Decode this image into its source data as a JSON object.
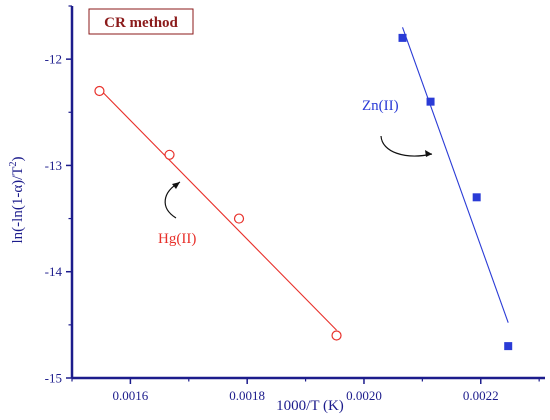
{
  "chart_data": {
    "type": "scatter",
    "title": "CR method",
    "xlabel": "1000/T (K)",
    "ylabel_main": "ln(-ln(1-α)/T",
    "ylabel_sup": "2",
    "ylabel_close": ")",
    "xlim": [
      0.0015,
      0.00231
    ],
    "ylim": [
      -15.0,
      -11.5
    ],
    "xticks": [
      0.0016,
      0.0018,
      0.002,
      0.0022
    ],
    "xtick_labels": [
      "0.0016",
      "0.0018",
      "0.0020",
      "0.0022"
    ],
    "yticks": [
      -12,
      -13,
      -14,
      -15
    ],
    "ytick_labels": [
      "-12",
      "-13",
      "-14",
      "-15"
    ],
    "axis_color": "#1c1c8c",
    "title_color": "#8b1a1a",
    "series": [
      {
        "name": "Hg(II)",
        "marker": "open-circle",
        "color": "#e8302a",
        "x": [
          0.001547,
          0.001667,
          0.001786,
          0.001953
        ],
        "y": [
          -12.3,
          -12.9,
          -13.5,
          -14.6
        ],
        "fit_x": [
          0.001547,
          0.001953
        ],
        "fit_y": [
          -12.28,
          -14.55
        ]
      },
      {
        "name": "Zn(II)",
        "marker": "filled-square",
        "color": "#2a3bd6",
        "x": [
          0.002066,
          0.002114,
          0.002193,
          0.002247
        ],
        "y": [
          -11.8,
          -12.4,
          -13.3,
          -14.7
        ],
        "fit_x": [
          0.002066,
          0.002247
        ],
        "fit_y": [
          -11.7,
          -14.48
        ]
      }
    ]
  }
}
